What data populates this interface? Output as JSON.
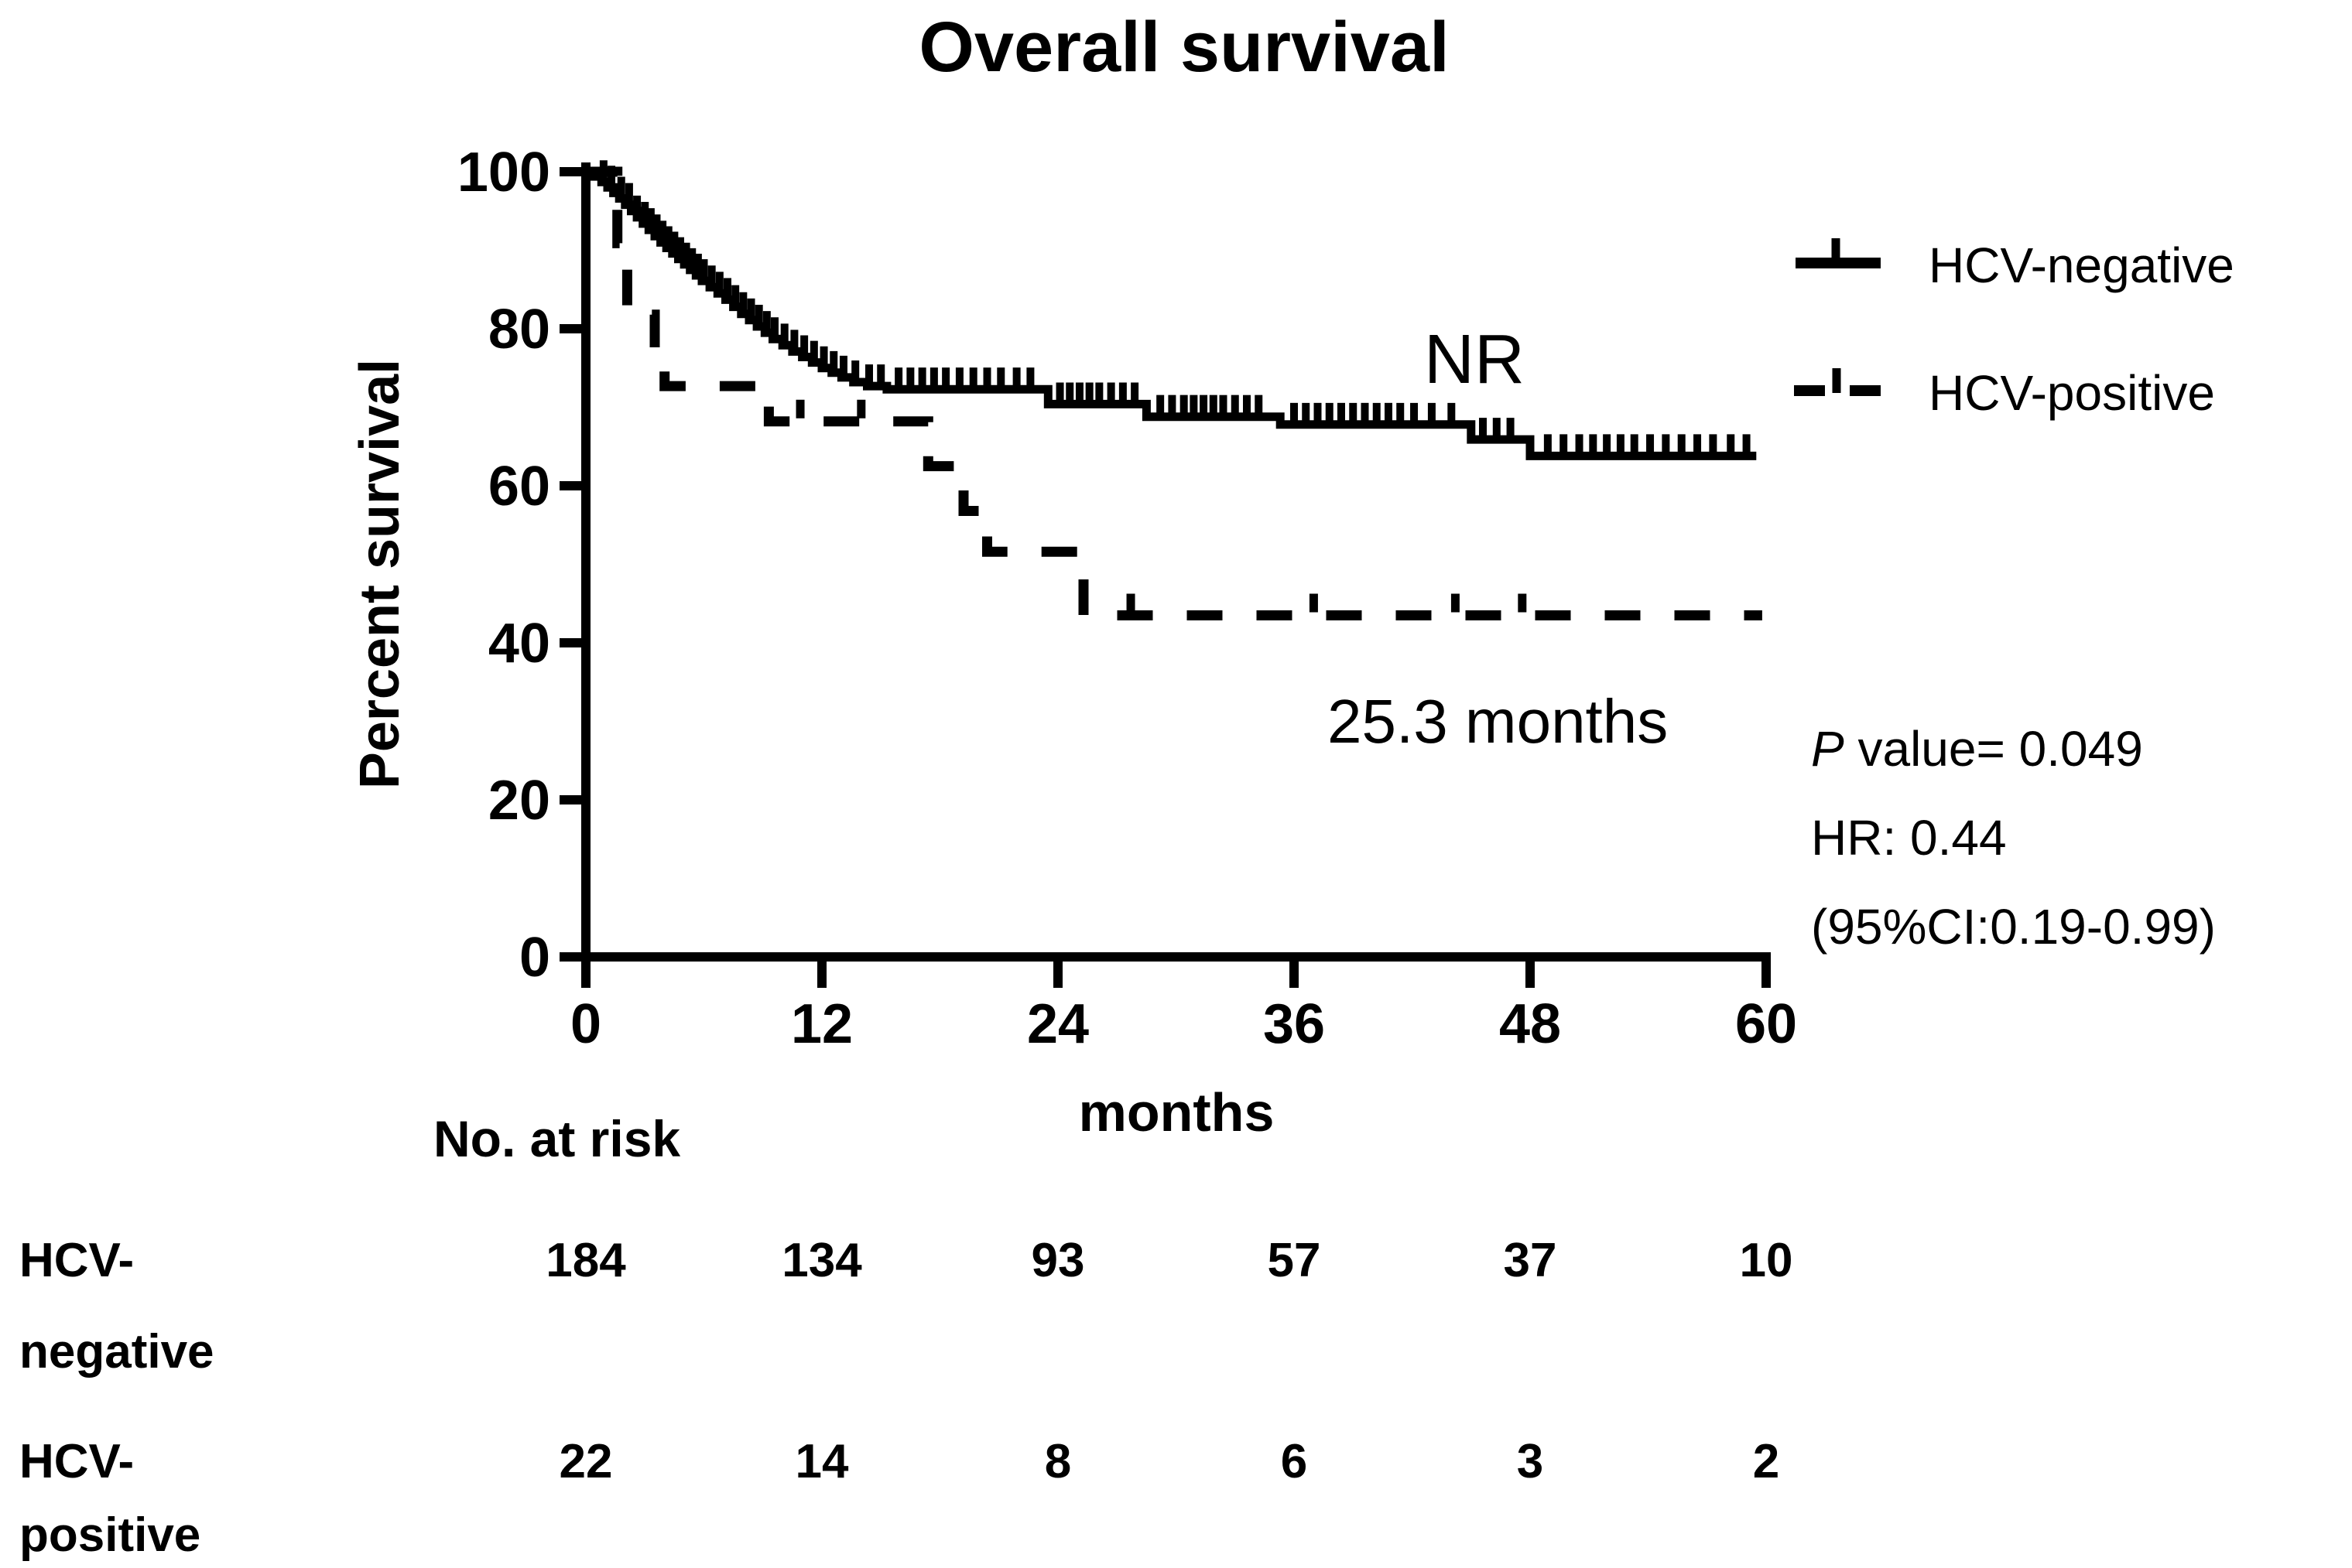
{
  "title": "Overall survival",
  "axes": {
    "y": {
      "label": "Percent survival",
      "ticks": [
        0,
        20,
        40,
        60,
        80,
        100
      ]
    },
    "x": {
      "label": "months",
      "ticks": [
        0,
        12,
        24,
        36,
        48,
        60
      ]
    }
  },
  "legend": [
    {
      "label": "HCV-negative",
      "line_style": "solid-with-censor-tick"
    },
    {
      "label": "HCV-positive",
      "line_style": "dashed-with-censor-tick"
    }
  ],
  "annotations": {
    "median_negative": "NR",
    "median_positive": "25.3 months",
    "p_italic": "P",
    "p_rest": " value= 0.049",
    "hazard_ratio": "HR: 0.44",
    "confidence_interval": "(95%CI:0.19-0.99)"
  },
  "risk_table": {
    "header": "No. at risk",
    "time_points": [
      0,
      12,
      24,
      36,
      48,
      60
    ],
    "rows": [
      {
        "label_line1": "HCV-",
        "label_line2": "negative",
        "values": [
          184,
          134,
          93,
          57,
          37,
          10
        ]
      },
      {
        "label_line1": "HCV-",
        "label_line2": "positive",
        "values": [
          22,
          14,
          8,
          6,
          3,
          2
        ]
      }
    ]
  },
  "chart_data": {
    "type": "line",
    "subtype": "kaplan-meier-step",
    "title": "Overall survival",
    "xlabel": "months",
    "ylabel": "Percent survival",
    "xlim": [
      0,
      60
    ],
    "ylim": [
      0,
      100
    ],
    "x_ticks": [
      0,
      12,
      24,
      36,
      48,
      60
    ],
    "y_ticks": [
      0,
      20,
      40,
      60,
      80,
      100
    ],
    "grid": false,
    "legend_position": "top-right",
    "colors": {
      "foreground": "#000000",
      "background": "#ffffff"
    },
    "series": [
      {
        "name": "HCV-negative",
        "style": "solid",
        "color": "#000000",
        "median_survival": "NR",
        "steps": [
          [
            0,
            100
          ],
          [
            0.4,
            99.4
          ],
          [
            0.8,
            98.7
          ],
          [
            1.1,
            98.0
          ],
          [
            1.4,
            97.3
          ],
          [
            1.7,
            96.6
          ],
          [
            2.0,
            95.8
          ],
          [
            2.3,
            95.0
          ],
          [
            2.6,
            94.2
          ],
          [
            2.9,
            93.4
          ],
          [
            3.2,
            92.6
          ],
          [
            3.5,
            91.8
          ],
          [
            3.8,
            91.0
          ],
          [
            4.1,
            90.3
          ],
          [
            4.4,
            89.6
          ],
          [
            4.7,
            88.9
          ],
          [
            5.0,
            88.2
          ],
          [
            5.3,
            87.5
          ],
          [
            5.6,
            86.8
          ],
          [
            5.9,
            86.1
          ],
          [
            6.3,
            85.3
          ],
          [
            6.7,
            84.5
          ],
          [
            7.1,
            83.7
          ],
          [
            7.5,
            82.8
          ],
          [
            7.9,
            81.9
          ],
          [
            8.3,
            81.1
          ],
          [
            8.7,
            80.3
          ],
          [
            9.1,
            79.5
          ],
          [
            9.5,
            78.7
          ],
          [
            10.0,
            77.9
          ],
          [
            10.5,
            77.1
          ],
          [
            11.0,
            76.4
          ],
          [
            11.5,
            75.7
          ],
          [
            12.0,
            75.0
          ],
          [
            12.5,
            74.4
          ],
          [
            13.0,
            73.8
          ],
          [
            13.6,
            73.2
          ],
          [
            14.3,
            72.7
          ],
          [
            15.3,
            72.3
          ],
          [
            23.5,
            70.4
          ],
          [
            28.5,
            68.8
          ],
          [
            35.3,
            67.8
          ],
          [
            45.0,
            65.9
          ],
          [
            48.0,
            63.8
          ],
          [
            59.5,
            63.8
          ]
        ],
        "censor_ticks": [
          0.9,
          1.3,
          1.8,
          2.2,
          2.6,
          3.0,
          3.3,
          3.6,
          3.9,
          4.2,
          4.5,
          4.8,
          5.1,
          5.4,
          5.7,
          6.0,
          6.4,
          6.8,
          7.2,
          7.6,
          8.0,
          8.4,
          8.8,
          9.2,
          9.6,
          10.1,
          10.6,
          11.1,
          11.6,
          12.1,
          12.6,
          13.1,
          13.7,
          14.4,
          15.0,
          15.9,
          16.5,
          17.1,
          17.7,
          18.3,
          19.0,
          19.7,
          20.4,
          21.1,
          21.9,
          22.6,
          24.1,
          24.6,
          25.1,
          25.6,
          26.1,
          26.7,
          27.3,
          27.9,
          29.2,
          29.8,
          30.4,
          30.9,
          31.4,
          31.9,
          32.4,
          33.0,
          33.6,
          34.2,
          36.0,
          36.6,
          37.2,
          37.8,
          38.4,
          39.0,
          39.6,
          40.2,
          40.8,
          41.4,
          42.1,
          43.0,
          44.0,
          45.6,
          46.3,
          47.0,
          48.9,
          49.7,
          50.5,
          51.2,
          51.9,
          52.6,
          53.3,
          54.1,
          54.9,
          55.7,
          56.5,
          57.3,
          58.2,
          59.0
        ]
      },
      {
        "name": "HCV-positive",
        "style": "dashed",
        "color": "#000000",
        "median_survival": "25.3 months",
        "steps": [
          [
            0,
            100
          ],
          [
            1.6,
            90.9
          ],
          [
            2.1,
            81.8
          ],
          [
            3.5,
            77.3
          ],
          [
            4.0,
            72.7
          ],
          [
            9.3,
            68.2
          ],
          [
            17.4,
            62.5
          ],
          [
            19.2,
            56.8
          ],
          [
            20.4,
            51.6
          ],
          [
            25.3,
            43.5
          ],
          [
            59.8,
            43.5
          ]
        ],
        "censor_ticks": [
          10.9,
          14.0,
          27.7,
          37.0,
          44.2,
          47.6
        ]
      }
    ],
    "stats": {
      "p_value": "0.049",
      "hazard_ratio": "0.44",
      "ci_95": "0.19-0.99"
    }
  }
}
